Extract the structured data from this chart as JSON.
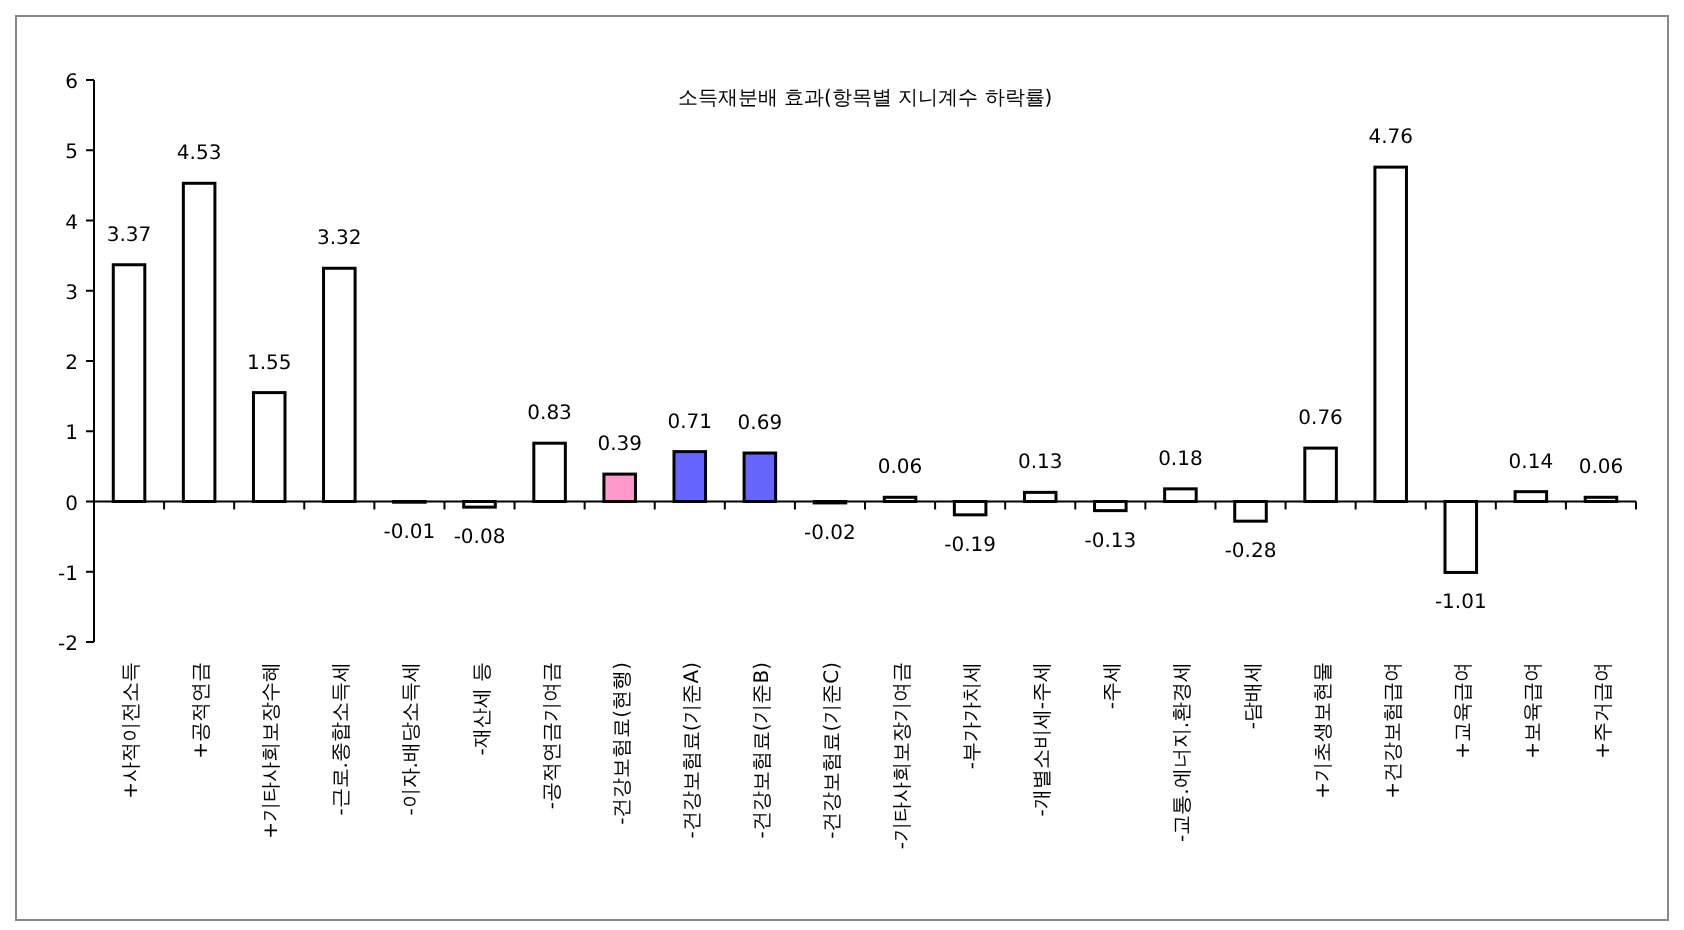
{
  "chart_data": {
    "type": "bar",
    "title": "소득재분배 효과(항목별 지니계수 하락률)",
    "categories": [
      "+사적이전소득",
      "+공적연금",
      "+기타사회보장수혜",
      "-근로.종합소득세",
      "-이자.배당소득세",
      "-재산세 등",
      "-공적연금기여금",
      "-건강보험료(현행)",
      "-건강보험료(기준A)",
      "-건강보험료(기준B)",
      "-건강보험료(기준C)",
      "-기타사회보장기여금",
      "-부가가치세",
      "-개별소비세-주세",
      "-주세",
      "-교통.에너지.환경세",
      "-담배세",
      "+기초생보현물",
      "+건강보험급여",
      "+교육급여",
      "+보육급여",
      "+주거급여"
    ],
    "values": [
      3.37,
      4.53,
      1.55,
      3.32,
      -0.01,
      -0.08,
      0.83,
      0.39,
      0.71,
      0.69,
      -0.02,
      0.06,
      -0.19,
      0.13,
      -0.13,
      0.18,
      -0.28,
      0.76,
      4.76,
      -1.01,
      0.14,
      0.06
    ],
    "colors": [
      "#ffffff",
      "#ffffff",
      "#ffffff",
      "#ffffff",
      "#ffffff",
      "#ffffff",
      "#ffffff",
      "#ff99cc",
      "#6666ff",
      "#6666ff",
      "#ffffff",
      "#ffffff",
      "#ffffff",
      "#ffffff",
      "#ffffff",
      "#ffffff",
      "#ffffff",
      "#ffffff",
      "#ffffff",
      "#ffffff",
      "#ffffff",
      "#ffffff"
    ],
    "ylim": [
      -2,
      6
    ],
    "yticks": [
      -2,
      -1,
      0,
      1,
      2,
      3,
      4,
      5,
      6
    ],
    "data_labels": true
  }
}
